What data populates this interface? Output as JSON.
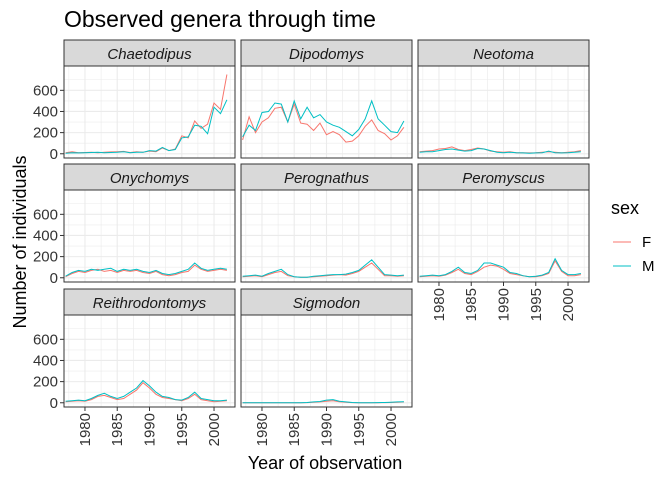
{
  "chart_data": {
    "type": "line",
    "title": "Observed genera through time",
    "xlabel": "Year of observation",
    "ylabel": "Number of individuals",
    "x_ticks": [
      1980,
      1985,
      1990,
      1995,
      2000
    ],
    "y_ticks": [
      0,
      200,
      400,
      600
    ],
    "xlim": [
      1976.75,
      2003.25
    ],
    "ylim": [
      -40,
      830
    ],
    "grid": true,
    "legend": {
      "title": "sex",
      "position": "right"
    },
    "colors": {
      "F": "#F8766D",
      "M": "#00BFC4",
      "panel_bg": "#FFFFFF",
      "strip_bg": "#D9D9D9",
      "grid": "#EBEBEB"
    },
    "years": [
      1977,
      1978,
      1979,
      1980,
      1981,
      1982,
      1983,
      1984,
      1985,
      1986,
      1987,
      1988,
      1989,
      1990,
      1991,
      1992,
      1993,
      1994,
      1995,
      1996,
      1997,
      1998,
      1999,
      2000,
      2001,
      2002
    ],
    "facets": [
      {
        "genus": "Chaetodipus",
        "series": [
          {
            "name": "F",
            "values": [
              10,
              20,
              10,
              12,
              14,
              10,
              15,
              18,
              20,
              22,
              12,
              20,
              15,
              25,
              20,
              55,
              30,
              45,
              170,
              150,
              310,
              240,
              280,
              480,
              420,
              750
            ]
          },
          {
            "name": "M",
            "values": [
              5,
              10,
              8,
              10,
              12,
              14,
              10,
              12,
              14,
              20,
              10,
              15,
              14,
              30,
              25,
              60,
              30,
              40,
              150,
              160,
              270,
              260,
              190,
              440,
              380,
              510
            ]
          }
        ]
      },
      {
        "genus": "Dipodomys",
        "series": [
          {
            "name": "F",
            "values": [
              130,
              350,
              200,
              300,
              340,
              430,
              440,
              300,
              470,
              290,
              280,
              220,
              290,
              180,
              210,
              180,
              110,
              120,
              170,
              260,
              320,
              220,
              190,
              130,
              170,
              250
            ]
          },
          {
            "name": "M",
            "values": [
              160,
              270,
              220,
              390,
              400,
              480,
              470,
              300,
              500,
              330,
              440,
              340,
              370,
              300,
              270,
              250,
              210,
              170,
              230,
              330,
              500,
              330,
              270,
              210,
              200,
              310
            ]
          }
        ]
      },
      {
        "genus": "Neotoma",
        "series": [
          {
            "name": "F",
            "values": [
              20,
              25,
              30,
              45,
              50,
              65,
              40,
              30,
              40,
              55,
              45,
              25,
              20,
              15,
              20,
              10,
              10,
              8,
              10,
              15,
              20,
              15,
              10,
              15,
              20,
              30
            ]
          },
          {
            "name": "M",
            "values": [
              15,
              20,
              20,
              30,
              40,
              45,
              35,
              25,
              30,
              50,
              45,
              30,
              15,
              10,
              15,
              10,
              8,
              5,
              8,
              10,
              25,
              10,
              8,
              10,
              15,
              20
            ]
          }
        ]
      },
      {
        "genus": "Onychomys",
        "series": [
          {
            "name": "F",
            "values": [
              10,
              40,
              60,
              50,
              70,
              80,
              60,
              70,
              50,
              70,
              60,
              70,
              50,
              40,
              60,
              30,
              20,
              30,
              50,
              60,
              120,
              80,
              60,
              70,
              80,
              70
            ]
          },
          {
            "name": "M",
            "values": [
              15,
              50,
              70,
              60,
              80,
              70,
              80,
              90,
              60,
              80,
              70,
              80,
              60,
              50,
              70,
              40,
              30,
              40,
              60,
              80,
              140,
              90,
              70,
              80,
              90,
              80
            ]
          }
        ]
      },
      {
        "genus": "Perognathus",
        "series": [
          {
            "name": "F",
            "values": [
              10,
              15,
              20,
              10,
              30,
              50,
              60,
              20,
              10,
              5,
              5,
              10,
              15,
              20,
              25,
              30,
              25,
              40,
              60,
              100,
              140,
              80,
              20,
              20,
              15,
              20
            ]
          },
          {
            "name": "M",
            "values": [
              15,
              20,
              25,
              15,
              40,
              60,
              80,
              30,
              10,
              5,
              5,
              15,
              20,
              25,
              30,
              30,
              35,
              50,
              70,
              120,
              170,
              100,
              30,
              25,
              20,
              25
            ]
          }
        ]
      },
      {
        "genus": "Peromyscus",
        "series": [
          {
            "name": "F",
            "values": [
              10,
              15,
              20,
              15,
              25,
              50,
              80,
              40,
              30,
              60,
              100,
              120,
              110,
              80,
              40,
              30,
              20,
              10,
              10,
              20,
              40,
              160,
              60,
              20,
              20,
              30
            ]
          },
          {
            "name": "M",
            "values": [
              15,
              20,
              25,
              20,
              30,
              60,
              100,
              50,
              40,
              70,
              140,
              140,
              120,
              100,
              50,
              40,
              20,
              10,
              15,
              25,
              50,
              180,
              70,
              30,
              30,
              40
            ]
          }
        ]
      },
      {
        "genus": "Reithrodontomys",
        "series": [
          {
            "name": "F",
            "values": [
              10,
              15,
              20,
              15,
              30,
              60,
              70,
              50,
              30,
              40,
              80,
              120,
              190,
              140,
              80,
              50,
              40,
              30,
              20,
              40,
              80,
              30,
              20,
              10,
              15,
              20
            ]
          },
          {
            "name": "M",
            "values": [
              15,
              20,
              25,
              20,
              40,
              70,
              90,
              60,
              40,
              60,
              100,
              140,
              210,
              160,
              100,
              60,
              50,
              30,
              25,
              50,
              100,
              40,
              30,
              20,
              20,
              25
            ]
          }
        ]
      },
      {
        "genus": "Sigmodon",
        "series": [
          {
            "name": "F",
            "values": [
              0,
              0,
              0,
              0,
              0,
              0,
              0,
              0,
              0,
              0,
              2,
              5,
              8,
              15,
              20,
              10,
              5,
              2,
              1,
              1,
              0,
              1,
              2,
              3,
              5,
              8
            ]
          },
          {
            "name": "M",
            "values": [
              0,
              0,
              0,
              0,
              0,
              0,
              0,
              0,
              0,
              0,
              3,
              8,
              12,
              25,
              30,
              15,
              8,
              3,
              1,
              1,
              0,
              2,
              3,
              5,
              8,
              10
            ]
          }
        ]
      }
    ]
  }
}
